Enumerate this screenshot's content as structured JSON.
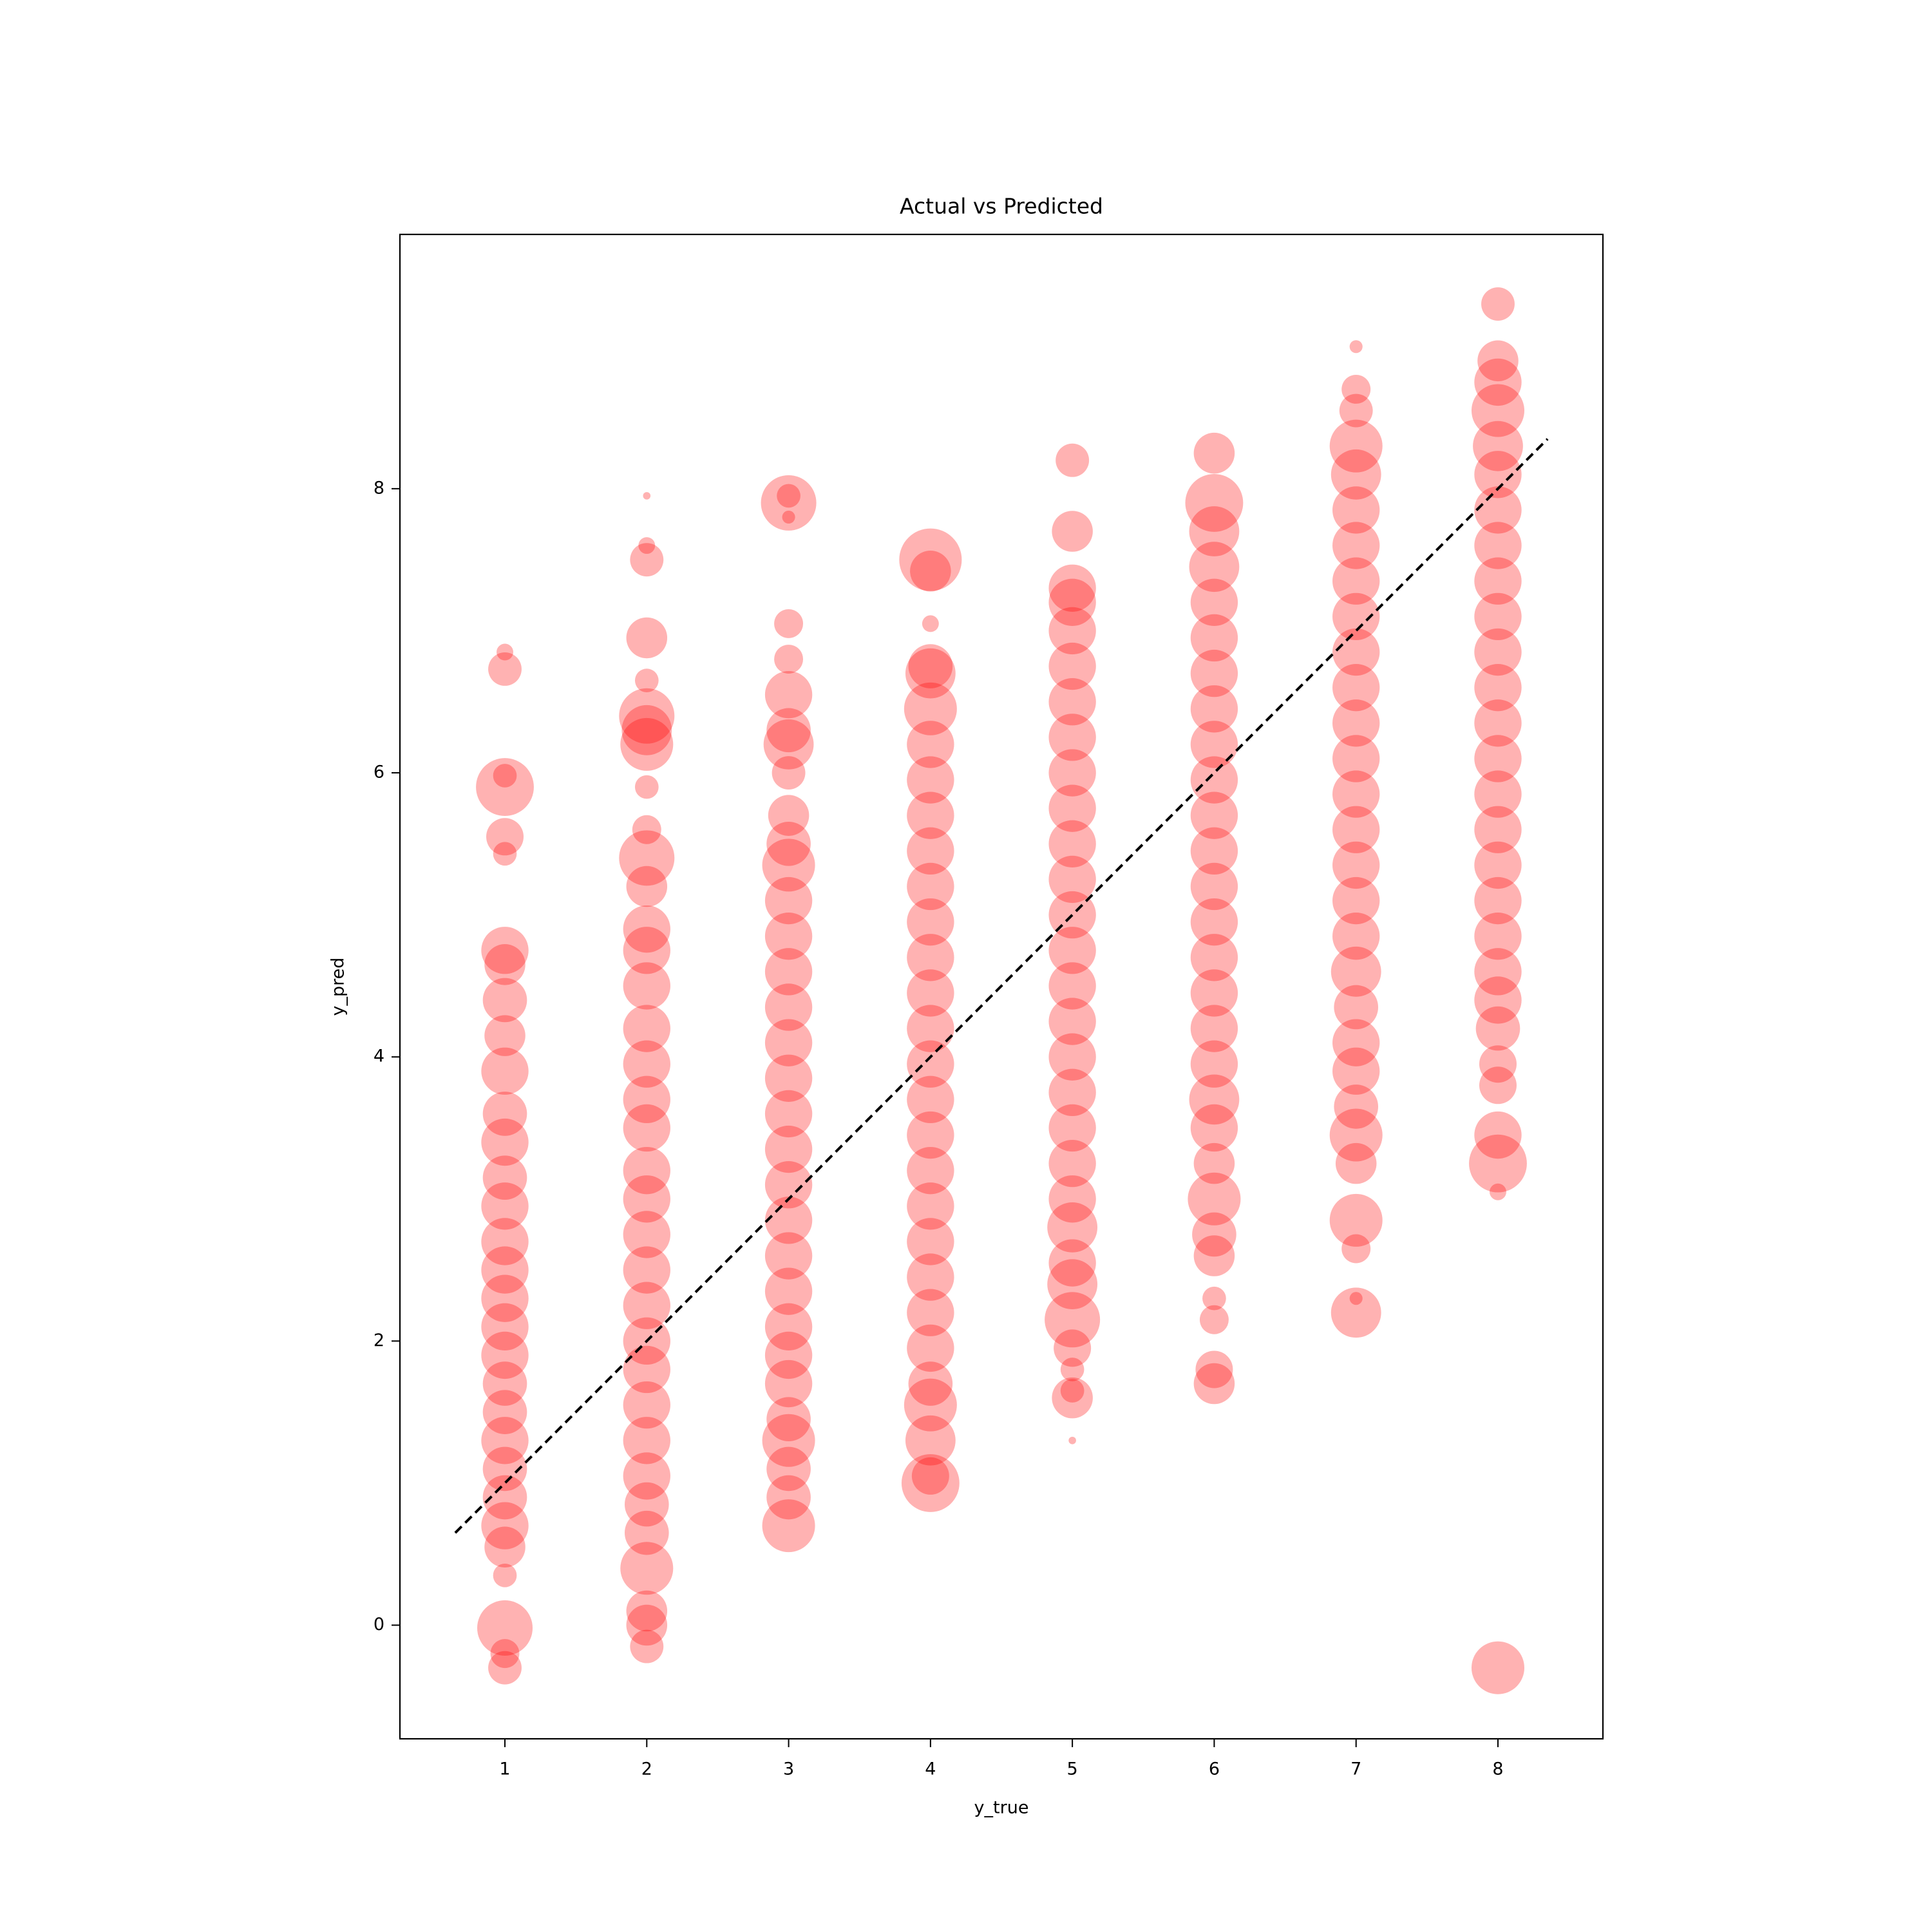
{
  "chart_data": {
    "type": "scatter",
    "title": "Actual vs Predicted",
    "x_label": "y_true",
    "y_label": "y_pred",
    "xlim": [
      0.26,
      8.74
    ],
    "ylim": [
      -0.8,
      9.79
    ],
    "xticks": [
      1,
      2,
      3,
      4,
      5,
      6,
      7,
      8
    ],
    "yticks": [
      0,
      2,
      4,
      6,
      8
    ],
    "grid": false,
    "alpha": 0.3,
    "x": [
      1,
      1,
      1,
      1,
      1,
      1,
      1,
      1,
      1,
      1,
      1,
      1,
      1,
      1,
      1,
      1,
      1,
      1,
      1,
      1,
      1,
      1,
      1,
      1,
      1,
      1,
      1,
      1,
      1,
      1,
      1,
      2,
      2,
      2,
      2,
      2,
      2,
      2,
      2,
      2,
      2,
      2,
      2,
      2,
      2,
      2,
      2,
      2,
      2,
      2,
      2,
      2,
      2,
      2,
      2,
      2,
      2,
      2,
      2,
      2,
      2,
      2,
      2,
      2,
      2,
      2,
      3,
      3,
      3,
      3,
      3,
      3,
      3,
      3,
      3,
      3,
      3,
      3,
      3,
      3,
      3,
      3,
      3,
      3,
      3,
      3,
      3,
      3,
      3,
      3,
      3,
      3,
      3,
      3,
      3,
      3,
      3,
      3,
      4,
      4,
      4,
      4,
      4,
      4,
      4,
      4,
      4,
      4,
      4,
      4,
      4,
      4,
      4,
      4,
      4,
      4,
      4,
      4,
      4,
      4,
      4,
      4,
      4,
      4,
      4,
      4,
      4,
      5,
      5,
      5,
      5,
      5,
      5,
      5,
      5,
      5,
      5,
      5,
      5,
      5,
      5,
      5,
      5,
      5,
      5,
      5,
      5,
      5,
      5,
      5,
      5,
      5,
      5,
      5,
      5,
      5,
      5,
      6,
      6,
      6,
      6,
      6,
      6,
      6,
      6,
      6,
      6,
      6,
      6,
      6,
      6,
      6,
      6,
      6,
      6,
      6,
      6,
      6,
      6,
      6,
      6,
      6,
      6,
      6,
      6,
      7,
      7,
      7,
      7,
      7,
      7,
      7,
      7,
      7,
      7,
      7,
      7,
      7,
      7,
      7,
      7,
      7,
      7,
      7,
      7,
      7,
      7,
      7,
      7,
      7,
      7,
      7,
      7,
      7,
      8,
      8,
      8,
      8,
      8,
      8,
      8,
      8,
      8,
      8,
      8,
      8,
      8,
      8,
      8,
      8,
      8,
      8,
      8,
      8,
      8,
      8,
      8,
      8,
      8,
      8,
      8,
      8
    ],
    "series": [
      {
        "color": "#ff0000",
        "values": [
          6.85,
          6.73,
          5.9,
          5.98,
          5.55,
          5.43,
          4.75,
          4.65,
          4.4,
          4.15,
          3.9,
          3.6,
          3.4,
          3.15,
          2.95,
          2.7,
          2.5,
          2.3,
          2.1,
          1.9,
          1.7,
          1.5,
          1.3,
          1.1,
          0.9,
          0.7,
          0.55,
          0.35,
          -0.02,
          -0.2,
          -0.3,
          7.95,
          7.6,
          7.5,
          6.95,
          6.65,
          6.4,
          6.3,
          6.2,
          5.9,
          5.6,
          5.4,
          5.2,
          4.9,
          4.75,
          4.5,
          4.2,
          3.95,
          3.7,
          3.5,
          3.2,
          3.0,
          2.75,
          2.5,
          2.25,
          2.0,
          1.8,
          1.55,
          1.3,
          1.05,
          0.85,
          0.65,
          0.4,
          0.1,
          0.0,
          -0.15,
          7.9,
          7.95,
          7.8,
          7.05,
          6.8,
          6.55,
          6.3,
          6.2,
          6.0,
          5.7,
          5.5,
          5.35,
          5.1,
          4.85,
          4.6,
          4.35,
          4.1,
          3.85,
          3.6,
          3.35,
          3.1,
          2.85,
          2.6,
          2.35,
          2.1,
          1.9,
          1.7,
          1.45,
          1.3,
          1.1,
          0.9,
          0.7,
          7.5,
          7.42,
          7.05,
          6.75,
          6.7,
          6.45,
          6.2,
          5.95,
          5.7,
          5.45,
          5.2,
          4.95,
          4.7,
          4.45,
          4.2,
          3.95,
          3.7,
          3.45,
          3.2,
          2.95,
          2.7,
          2.45,
          2.2,
          1.95,
          1.7,
          1.55,
          1.3,
          1.05,
          1.0,
          8.2,
          7.7,
          7.3,
          7.2,
          7.0,
          6.75,
          6.5,
          6.25,
          6.0,
          5.75,
          5.5,
          5.25,
          5.0,
          4.75,
          4.5,
          4.25,
          4.0,
          3.75,
          3.5,
          3.25,
          3.0,
          2.8,
          2.55,
          2.4,
          2.15,
          1.95,
          1.8,
          1.65,
          1.6,
          1.3,
          8.25,
          7.9,
          7.7,
          7.45,
          7.2,
          6.95,
          6.7,
          6.45,
          6.2,
          5.95,
          5.7,
          5.45,
          5.2,
          4.95,
          4.7,
          4.45,
          4.2,
          3.95,
          3.7,
          3.5,
          3.25,
          3.0,
          2.75,
          2.6,
          2.3,
          2.15,
          1.8,
          1.7,
          9.0,
          8.7,
          8.55,
          8.3,
          8.1,
          7.85,
          7.6,
          7.35,
          7.1,
          6.85,
          6.6,
          6.35,
          6.1,
          5.85,
          5.6,
          5.35,
          5.1,
          4.85,
          4.6,
          4.35,
          4.1,
          3.9,
          3.65,
          3.45,
          3.25,
          2.85,
          2.65,
          2.3,
          2.2,
          9.3,
          8.9,
          8.75,
          8.55,
          8.3,
          8.1,
          7.85,
          7.6,
          7.35,
          7.1,
          6.85,
          6.6,
          6.35,
          6.1,
          5.85,
          5.6,
          5.35,
          5.1,
          4.85,
          4.6,
          4.4,
          4.2,
          3.95,
          3.8,
          3.45,
          3.25,
          3.05,
          -0.3
        ],
        "sizes": [
          5,
          20,
          60,
          10,
          25,
          10,
          40,
          30,
          35,
          30,
          40,
          35,
          40,
          35,
          40,
          40,
          40,
          40,
          40,
          40,
          35,
          35,
          40,
          35,
          35,
          40,
          30,
          10,
          55,
          15,
          20,
          1,
          5,
          20,
          30,
          10,
          55,
          45,
          50,
          10,
          15,
          55,
          30,
          40,
          40,
          40,
          40,
          40,
          40,
          40,
          40,
          40,
          40,
          40,
          40,
          40,
          40,
          40,
          40,
          40,
          35,
          35,
          50,
          30,
          30,
          20,
          55,
          10,
          3,
          15,
          15,
          40,
          35,
          45,
          20,
          30,
          35,
          50,
          40,
          40,
          40,
          40,
          40,
          40,
          40,
          40,
          40,
          40,
          40,
          40,
          40,
          40,
          40,
          35,
          50,
          35,
          35,
          50,
          70,
          30,
          5,
          35,
          45,
          50,
          40,
          40,
          40,
          40,
          40,
          40,
          40,
          40,
          40,
          40,
          40,
          40,
          40,
          40,
          40,
          40,
          40,
          40,
          35,
          50,
          45,
          25,
          60,
          20,
          30,
          40,
          40,
          40,
          40,
          40,
          40,
          40,
          40,
          40,
          40,
          40,
          40,
          40,
          40,
          40,
          40,
          40,
          40,
          40,
          45,
          40,
          45,
          55,
          25,
          10,
          10,
          30,
          1,
          30,
          60,
          45,
          45,
          40,
          40,
          40,
          40,
          40,
          40,
          40,
          40,
          40,
          40,
          40,
          40,
          40,
          40,
          45,
          40,
          30,
          50,
          35,
          30,
          10,
          15,
          25,
          30,
          3,
          15,
          20,
          50,
          45,
          40,
          40,
          40,
          40,
          40,
          40,
          40,
          40,
          40,
          40,
          40,
          40,
          40,
          45,
          35,
          40,
          40,
          35,
          50,
          30,
          50,
          15,
          3,
          45,
          20,
          30,
          40,
          50,
          45,
          40,
          40,
          40,
          40,
          40,
          40,
          40,
          40,
          40,
          40,
          40,
          40,
          40,
          40,
          40,
          40,
          35,
          25,
          25,
          40,
          60,
          5,
          50
        ]
      }
    ],
    "reference_line": {
      "x": [
        0.65,
        8.35
      ],
      "values": [
        0.65,
        8.35
      ],
      "color": "#000000"
    }
  }
}
